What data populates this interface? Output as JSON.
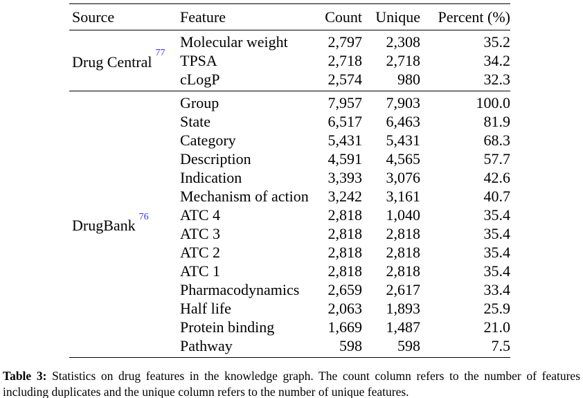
{
  "colors": {
    "text": "#000000",
    "citation_link": "#3535e8",
    "rule": "#000000",
    "background": "#ffffff"
  },
  "table": {
    "columns": [
      "Source",
      "Feature",
      "Count",
      "Unique",
      "Percent (%)"
    ],
    "groups": [
      {
        "source": "Drug Central",
        "ref": "77",
        "rows": [
          {
            "feature": "Molecular weight",
            "count": "2,797",
            "unique": "2,308",
            "percent": "35.2"
          },
          {
            "feature": "TPSA",
            "count": "2,718",
            "unique": "2,718",
            "percent": "34.2"
          },
          {
            "feature": "cLogP",
            "count": "2,574",
            "unique": "980",
            "percent": "32.3"
          }
        ]
      },
      {
        "source": "DrugBank",
        "ref": "76",
        "rows": [
          {
            "feature": "Group",
            "count": "7,957",
            "unique": "7,903",
            "percent": "100.0"
          },
          {
            "feature": "State",
            "count": "6,517",
            "unique": "6,463",
            "percent": "81.9"
          },
          {
            "feature": "Category",
            "count": "5,431",
            "unique": "5,431",
            "percent": "68.3"
          },
          {
            "feature": "Description",
            "count": "4,591",
            "unique": "4,565",
            "percent": "57.7"
          },
          {
            "feature": "Indication",
            "count": "3,393",
            "unique": "3,076",
            "percent": "42.6"
          },
          {
            "feature": "Mechanism of action",
            "count": "3,242",
            "unique": "3,161",
            "percent": "40.7"
          },
          {
            "feature": "ATC 4",
            "count": "2,818",
            "unique": "1,040",
            "percent": "35.4"
          },
          {
            "feature": "ATC 3",
            "count": "2,818",
            "unique": "2,818",
            "percent": "35.4"
          },
          {
            "feature": "ATC 2",
            "count": "2,818",
            "unique": "2,818",
            "percent": "35.4"
          },
          {
            "feature": "ATC 1",
            "count": "2,818",
            "unique": "2,818",
            "percent": "35.4"
          },
          {
            "feature": "Pharmacodynamics",
            "count": "2,659",
            "unique": "2,617",
            "percent": "33.4"
          },
          {
            "feature": "Half life",
            "count": "2,063",
            "unique": "1,893",
            "percent": "25.9"
          },
          {
            "feature": "Protein binding",
            "count": "1,669",
            "unique": "1,487",
            "percent": "21.0"
          },
          {
            "feature": "Pathway",
            "count": "598",
            "unique": "598",
            "percent": "7.5"
          }
        ]
      }
    ]
  },
  "caption": {
    "label": "Table 3:",
    "text": "Statistics on drug features in the knowledge graph. The count column refers to the number of features including duplicates and the unique column refers to the number of unique features."
  }
}
